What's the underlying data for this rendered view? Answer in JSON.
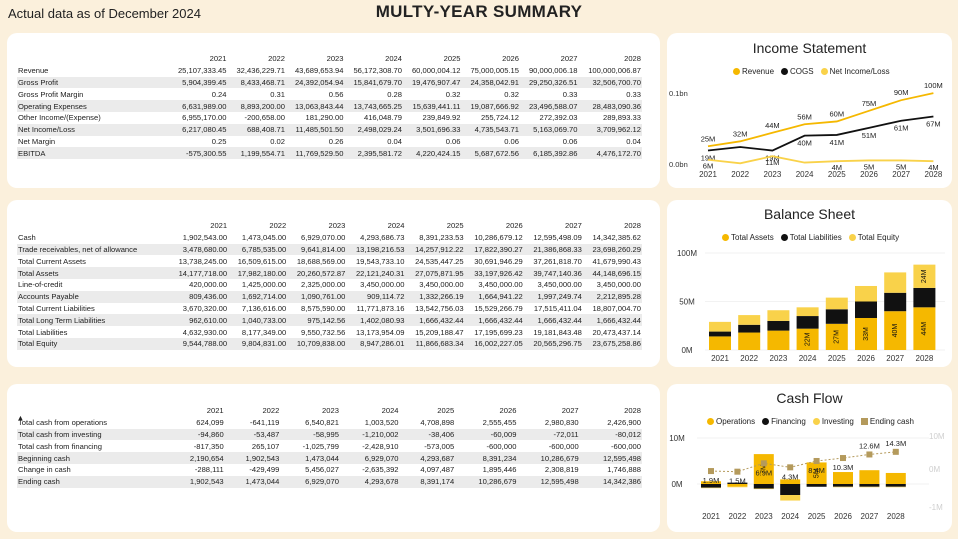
{
  "header": {
    "as_of": "Actual data as of December 2024",
    "title": "MULTY-YEAR SUMMARY"
  },
  "years": [
    "2021",
    "2022",
    "2023",
    "2024",
    "2025",
    "2026",
    "2027",
    "2028"
  ],
  "income_table": {
    "rows": [
      {
        "label": "Revenue",
        "values": [
          "25,107,333.45",
          "32,436,229.71",
          "43,689,653.94",
          "56,172,308.70",
          "60,000,004.12",
          "75,000,005.15",
          "90,000,006.18",
          "100,000,006.87"
        ]
      },
      {
        "label": "Gross Profit",
        "values": [
          "5,904,399.45",
          "8,433,468.71",
          "24,392,054.94",
          "15,841,679.70",
          "19,476,907.47",
          "24,358,042.91",
          "29,250,326.51",
          "32,506,700.70"
        ]
      },
      {
        "label": "Gross Profit Margin",
        "values": [
          "0.24",
          "0.31",
          "0.56",
          "0.28",
          "0.32",
          "0.32",
          "0.33",
          "0.33"
        ]
      },
      {
        "label": "Operating Expenses",
        "values": [
          "6,631,989.00",
          "8,893,200.00",
          "13,063,843.44",
          "13,743,665.25",
          "15,639,441.11",
          "19,087,666.92",
          "23,496,588.07",
          "28,483,090.36"
        ]
      },
      {
        "label": "Other Income/(Expense)",
        "values": [
          "6,955,170.00",
          "-200,658.00",
          "181,290.00",
          "416,048.79",
          "239,849.92",
          "255,724.12",
          "272,392.03",
          "289,893.33"
        ]
      },
      {
        "label": "Net Income/Loss",
        "values": [
          "6,217,080.45",
          "688,408.71",
          "11,485,501.50",
          "2,498,029.24",
          "3,501,696.33",
          "4,735,543.71",
          "5,163,069.70",
          "3,709,962.12"
        ]
      },
      {
        "label": "Net Margin",
        "values": [
          "0.25",
          "0.02",
          "0.26",
          "0.04",
          "0.06",
          "0.06",
          "0.06",
          "0.04"
        ]
      },
      {
        "label": "EBITDA",
        "values": [
          "-575,300.55",
          "1,199,554.71",
          "11,769,529.50",
          "2,395,581.72",
          "4,220,424.15",
          "5,687,672.56",
          "6,185,392.86",
          "4,476,172.70"
        ]
      }
    ]
  },
  "balance_table": {
    "rows": [
      {
        "label": "Cash",
        "values": [
          "1,902,543.00",
          "1,473,045.00",
          "6,929,070.00",
          "4,293,686.73",
          "8,391,233.53",
          "10,286,679.12",
          "12,595,498.09",
          "14,342,385.62"
        ]
      },
      {
        "label": "Trade receivables, net of allowance",
        "values": [
          "3,478,680.00",
          "6,785,535.00",
          "9,641,814.00",
          "13,198,216.53",
          "14,257,912.22",
          "17,822,390.27",
          "21,386,868.33",
          "23,698,260.29"
        ]
      },
      {
        "label": "Total Current Assets",
        "values": [
          "13,738,245.00",
          "16,509,615.00",
          "18,688,569.00",
          "19,543,733.10",
          "24,535,447.25",
          "30,691,946.29",
          "37,261,818.70",
          "41,679,990.43"
        ]
      },
      {
        "label": "Total Assets",
        "values": [
          "14,177,718.00",
          "17,982,180.00",
          "20,260,572.87",
          "22,121,240.31",
          "27,075,871.95",
          "33,197,926.42",
          "39,747,140.36",
          "44,148,696.15"
        ]
      },
      {
        "label": "Line-of-credit",
        "values": [
          "420,000.00",
          "1,425,000.00",
          "2,325,000.00",
          "3,450,000.00",
          "3,450,000.00",
          "3,450,000.00",
          "3,450,000.00",
          "3,450,000.00"
        ]
      },
      {
        "label": "Accounts Payable",
        "values": [
          "809,436.00",
          "1,692,714.00",
          "1,090,761.00",
          "909,114.72",
          "1,332,266.19",
          "1,664,941.22",
          "1,997,249.74",
          "2,212,895.28"
        ]
      },
      {
        "label": "Total Current Liabilities",
        "values": [
          "3,670,320.00",
          "7,136,616.00",
          "8,575,590.00",
          "11,771,873.16",
          "13,542,756.03",
          "15,529,266.79",
          "17,515,411.04",
          "18,807,004.70"
        ]
      },
      {
        "label": "Total Long Term Liabilities",
        "values": [
          "962,610.00",
          "1,040,733.00",
          "975,142.56",
          "1,402,080.93",
          "1,666,432.44",
          "1,666,432.44",
          "1,666,432.44",
          "1,666,432.44"
        ]
      },
      {
        "label": "Total Liabilities",
        "values": [
          "4,632,930.00",
          "8,177,349.00",
          "9,550,732.56",
          "13,173,954.09",
          "15,209,188.47",
          "17,195,699.23",
          "19,181,843.48",
          "20,473,437.14"
        ]
      },
      {
        "label": "Total Equity",
        "values": [
          "9,544,788.00",
          "9,804,831.00",
          "10,709,838.00",
          "8,947,286.01",
          "11,866,683.34",
          "16,002,227.05",
          "20,565,296.75",
          "23,675,258.86"
        ]
      }
    ]
  },
  "cashflow_table": {
    "sort_glyph": "▲",
    "rows": [
      {
        "label": "Total cash from operations",
        "values": [
          "624,099",
          "-641,119",
          "6,540,821",
          "1,003,520",
          "4,708,898",
          "2,555,455",
          "2,980,830",
          "2,426,900"
        ]
      },
      {
        "label": "Total cash from investing",
        "values": [
          "-94,860",
          "-53,487",
          "-58,995",
          "-1,210,002",
          "-38,406",
          "-60,009",
          "-72,011",
          "-80,012"
        ]
      },
      {
        "label": "Total cash from financing",
        "values": [
          "-817,350",
          "265,107",
          "-1,025,799",
          "-2,428,910",
          "-573,005",
          "-600,000",
          "-600,000",
          "-600,000"
        ]
      },
      {
        "label": "Beginning cash",
        "values": [
          "2,190,654",
          "1,902,543",
          "1,473,044",
          "6,929,070",
          "4,293,687",
          "8,391,234",
          "10,286,679",
          "12,595,498"
        ]
      },
      {
        "label": "Change in cash",
        "values": [
          "-288,111",
          "-429,499",
          "5,456,027",
          "-2,635,392",
          "4,097,487",
          "1,895,446",
          "2,308,819",
          "1,746,888"
        ]
      },
      {
        "label": "Ending cash",
        "values": [
          "1,902,543",
          "1,473,044",
          "6,929,070",
          "4,293,678",
          "8,391,174",
          "10,286,679",
          "12,595,498",
          "14,342,386"
        ]
      }
    ]
  },
  "colors": {
    "yellow": "#f5b800",
    "black": "#111111",
    "lightyellow": "#f9d24a",
    "tan": "#b49a5c",
    "grid": "#e6e6e6"
  },
  "charts": {
    "income": {
      "title": "Income Statement",
      "legend": [
        {
          "name": "Revenue",
          "color": "#f5b800"
        },
        {
          "name": "COGS",
          "color": "#111111"
        },
        {
          "name": "Net Income/Loss",
          "color": "#f9d24a"
        }
      ],
      "y_ticks": [
        "0.1bn",
        "0.0bn"
      ]
    },
    "balance": {
      "title": "Balance Sheet",
      "legend": [
        {
          "name": "Total Assets",
          "color": "#f5b800"
        },
        {
          "name": "Total Liabilities",
          "color": "#111111"
        },
        {
          "name": "Total Equity",
          "color": "#f9d24a"
        }
      ],
      "y_ticks": [
        "100M",
        "50M",
        "0M"
      ]
    },
    "cash": {
      "title": "Cash Flow",
      "legend": [
        {
          "name": "Operations",
          "color": "#f5b800",
          "shape": "dot"
        },
        {
          "name": "Financing",
          "color": "#111111",
          "shape": "dot"
        },
        {
          "name": "Investing",
          "color": "#f9d24a",
          "shape": "dot"
        },
        {
          "name": "Ending cash",
          "color": "#b49a5c",
          "shape": "square"
        }
      ],
      "y_ticks_left": [
        "10M",
        "0M"
      ],
      "y_ticks_right": [
        "10M",
        "0M",
        "-1M"
      ]
    }
  },
  "chart_data": [
    {
      "type": "line",
      "title": "Income Statement",
      "x": [
        "2021",
        "2022",
        "2023",
        "2024",
        "2025",
        "2026",
        "2027",
        "2028"
      ],
      "y_ticks": [
        "0.1bn",
        "0.0bn"
      ],
      "series": [
        {
          "name": "Revenue",
          "values": [
            25,
            32,
            44,
            56,
            60,
            75,
            90,
            100
          ],
          "labels": [
            "25M",
            "32M",
            "44M",
            "56M",
            "60M",
            "75M",
            "90M",
            "100M"
          ]
        },
        {
          "name": "COGS",
          "values": [
            19,
            24,
            19,
            40,
            41,
            51,
            61,
            67
          ],
          "labels": [
            "19M",
            "",
            "19M",
            "40M",
            "41M",
            "51M",
            "61M",
            "67M"
          ]
        },
        {
          "name": "Net Income/Loss",
          "values": [
            6,
            1,
            11,
            2,
            4,
            5,
            5,
            4
          ],
          "labels": [
            "6M",
            "",
            "11M",
            "",
            "4M",
            "5M",
            "5M",
            "4M"
          ]
        }
      ],
      "units": "M"
    },
    {
      "type": "bar",
      "title": "Balance Sheet",
      "categories": [
        "2021",
        "2022",
        "2023",
        "2024",
        "2025",
        "2026",
        "2027",
        "2028"
      ],
      "y_ticks": [
        "100M",
        "50M",
        "0M"
      ],
      "series": [
        {
          "name": "Total Assets",
          "values": [
            14,
            18,
            20,
            22,
            27,
            33,
            40,
            44
          ]
        },
        {
          "name": "Total Liabilities",
          "values": [
            5,
            8,
            10,
            13,
            15,
            17,
            19,
            20
          ]
        },
        {
          "name": "Total Equity",
          "values": [
            10,
            10,
            11,
            9,
            12,
            16,
            21,
            24
          ]
        }
      ],
      "labels": [
        "",
        "",
        "",
        "22M",
        "27M",
        "33M",
        "40M",
        "44M"
      ],
      "top_label": {
        "2028": "24M"
      },
      "units": "M"
    },
    {
      "type": "bar",
      "title": "Cash Flow",
      "categories": [
        "2021",
        "2022",
        "2023",
        "2024",
        "2025",
        "2026",
        "2027",
        "2028"
      ],
      "series": [
        {
          "name": "Operations",
          "values": [
            0.6,
            -0.6,
            6.5,
            1.0,
            4.7,
            2.6,
            3.0,
            2.4
          ]
        },
        {
          "name": "Financing",
          "values": [
            -0.8,
            0.3,
            -1.0,
            -2.4,
            -0.6,
            -0.6,
            -0.6,
            -0.6
          ]
        },
        {
          "name": "Investing",
          "values": [
            -0.1,
            -0.1,
            -0.1,
            -1.2,
            0,
            -0.1,
            -0.1,
            -0.1
          ]
        },
        {
          "name": "Ending cash",
          "values": [
            1.9,
            1.5,
            6.9,
            4.3,
            8.4,
            10.3,
            12.6,
            14.3
          ]
        }
      ],
      "bar_labels": {
        "2023": "7M",
        "2025": "5M"
      },
      "ending_labels": [
        "1.9M",
        "1.5M",
        "6.9M",
        "4.3M",
        "8.4M",
        "10.3M",
        "12.6M",
        "14.3M"
      ],
      "y_ticks_left": [
        "10M",
        "0M"
      ],
      "y_ticks_right": [
        "10M",
        "0M",
        "-1M"
      ],
      "units": "M"
    }
  ]
}
